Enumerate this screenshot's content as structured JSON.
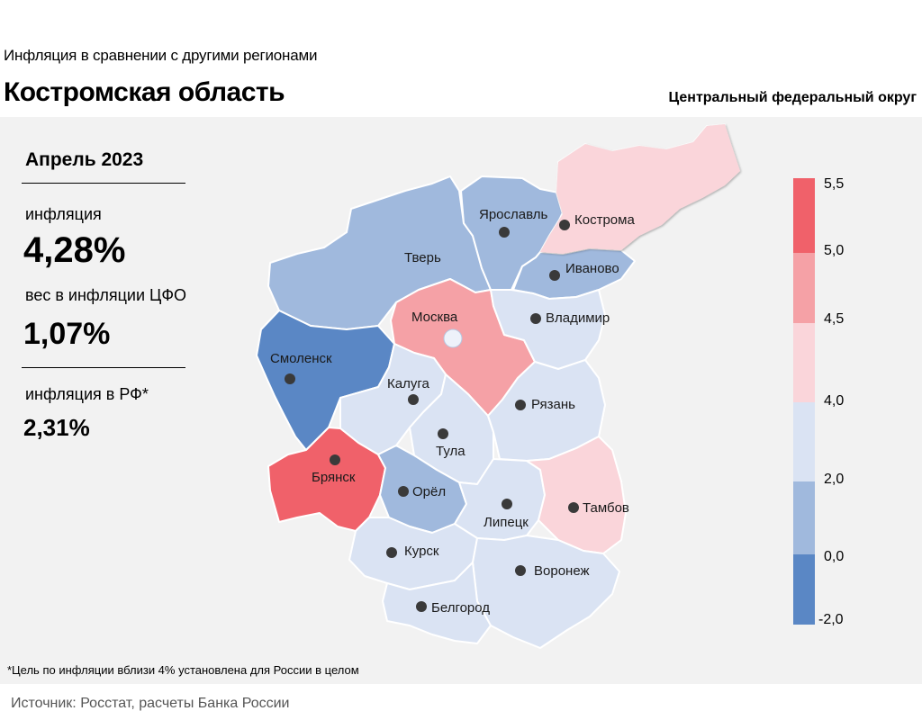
{
  "header": {
    "subtitle": "Инфляция  в сравнении  с другими  регионами",
    "title": "Костромская область",
    "district": "Центральный федеральный округ"
  },
  "stats": {
    "period": "Апрель 2023",
    "inflation_label": "инфляция",
    "inflation_value": "4,28%",
    "weight_label": "вес в инфляции  ЦФО",
    "weight_value": "1,07%",
    "rf_label": "инфляция  в РФ*",
    "rf_value": "2,31%"
  },
  "legend": {
    "labels": [
      "5,5",
      "5,0",
      "4,5",
      "4,0",
      "2,0",
      "0,0",
      "-2,0"
    ],
    "colors": [
      "#f0616a",
      "#f5a1a6",
      "#fad5da",
      "#dae3f3",
      "#a0b9dd",
      "#5a87c5"
    ]
  },
  "regions": {
    "kostroma": {
      "name": "Кострома",
      "color": "#fad5da"
    },
    "yaroslavl": {
      "name": "Ярославль",
      "color": "#a0b9dd"
    },
    "ivanovo": {
      "name": "Иваново",
      "color": "#a0b9dd"
    },
    "tver": {
      "name": "Тверь",
      "color": "#a0b9dd"
    },
    "moscow": {
      "name": "Москва",
      "color": "#f5a1a6"
    },
    "vladimir": {
      "name": "Владимир",
      "color": "#dae3f3"
    },
    "smolensk": {
      "name": "Смоленск",
      "color": "#5a87c5"
    },
    "kaluga": {
      "name": "Калуга",
      "color": "#dae3f3"
    },
    "ryazan": {
      "name": "Рязань",
      "color": "#dae3f3"
    },
    "tula": {
      "name": "Тула",
      "color": "#dae3f3"
    },
    "bryansk": {
      "name": "Брянск",
      "color": "#f0616a"
    },
    "orel": {
      "name": "Орёл",
      "color": "#a0b9dd"
    },
    "lipetsk": {
      "name": "Липецк",
      "color": "#dae3f3"
    },
    "tambov": {
      "name": "Тамбов",
      "color": "#fad5da"
    },
    "kursk": {
      "name": "Курск",
      "color": "#dae3f3"
    },
    "voronezh": {
      "name": "Воронеж",
      "color": "#dae3f3"
    },
    "belgorod": {
      "name": "Белгород",
      "color": "#dae3f3"
    }
  },
  "footnote": "*Цель по инфляции вблизи 4% установлена для России в целом",
  "source": "Источник: Росстат, расчеты Банка России"
}
